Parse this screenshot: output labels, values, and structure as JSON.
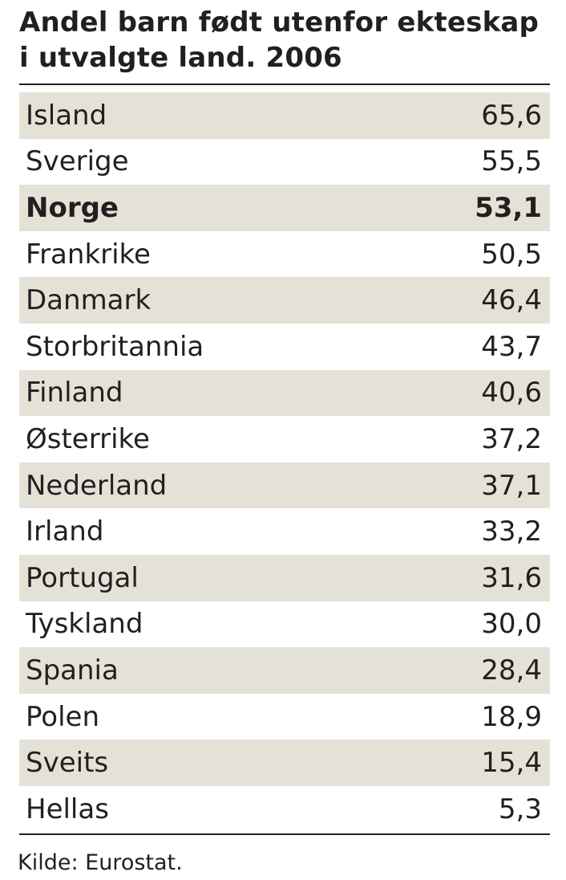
{
  "chart_data": {
    "type": "table",
    "title_line1": "Andel barn født utenfor ekteskap",
    "title_line2": "i utvalgte land. 2006",
    "highlight_color": "#e4e2d7",
    "rows": [
      {
        "country": "Island",
        "value": "65,6"
      },
      {
        "country": "Sverige",
        "value": "55,5"
      },
      {
        "country": "Norge",
        "value": "53,1",
        "bold": true
      },
      {
        "country": "Frankrike",
        "value": "50,5"
      },
      {
        "country": "Danmark",
        "value": "46,4"
      },
      {
        "country": "Storbritannia",
        "value": "43,7"
      },
      {
        "country": "Finland",
        "value": "40,6"
      },
      {
        "country": "Østerrike",
        "value": "37,2"
      },
      {
        "country": "Nederland",
        "value": "37,1"
      },
      {
        "country": "Irland",
        "value": "33,2"
      },
      {
        "country": "Portugal",
        "value": "31,6"
      },
      {
        "country": "Tyskland",
        "value": "30,0"
      },
      {
        "country": "Spania",
        "value": "28,4"
      },
      {
        "country": "Polen",
        "value": "18,9"
      },
      {
        "country": "Sveits",
        "value": "15,4"
      },
      {
        "country": "Hellas",
        "value": "5,3"
      }
    ],
    "source": "Kilde: Eurostat."
  }
}
